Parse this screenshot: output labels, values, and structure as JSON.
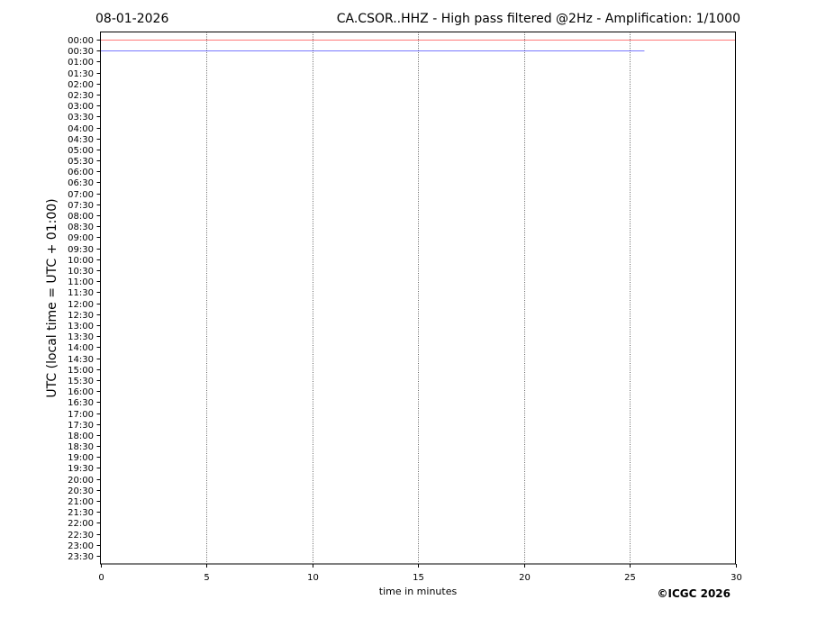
{
  "chart_data": {
    "type": "line",
    "title_left": "08-01-2026",
    "title": "CA.CSOR..HHZ - High pass filtered @2Hz - Amplification: 1/1000",
    "xlabel": "time in minutes",
    "ylabel": "UTC (local time = UTC + 01:00)",
    "xlim": [
      0,
      30
    ],
    "xticks": [
      0,
      5,
      10,
      15,
      20,
      25,
      30
    ],
    "grid": "vertical dotted",
    "yticks": [
      "00:00",
      "00:30",
      "01:00",
      "01:30",
      "02:00",
      "02:30",
      "03:00",
      "03:30",
      "04:00",
      "04:30",
      "05:00",
      "05:30",
      "06:00",
      "06:30",
      "07:00",
      "07:30",
      "08:00",
      "08:30",
      "09:00",
      "09:30",
      "10:00",
      "10:30",
      "11:00",
      "11:30",
      "12:00",
      "12:30",
      "13:00",
      "13:30",
      "14:00",
      "14:30",
      "15:00",
      "15:30",
      "16:00",
      "16:30",
      "17:00",
      "17:30",
      "18:00",
      "18:30",
      "19:00",
      "19:30",
      "20:00",
      "20:30",
      "21:00",
      "21:30",
      "22:00",
      "22:30",
      "23:00",
      "23:30"
    ],
    "traces": [
      {
        "row": "00:00",
        "x_start": 0,
        "x_end": 30,
        "color": "#ff0000"
      },
      {
        "row": "00:30",
        "x_start": 0,
        "x_end": 25.7,
        "color": "#0000ff"
      }
    ],
    "copyright": "©ICGC 2026"
  }
}
